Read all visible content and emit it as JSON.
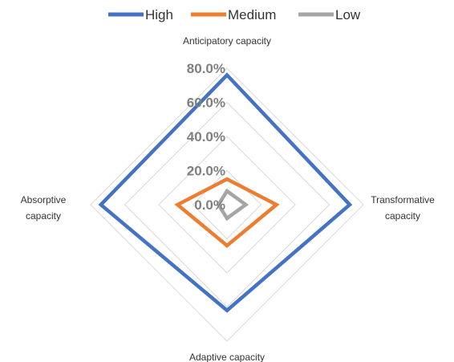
{
  "chart_data": {
    "type": "radar",
    "axes": [
      {
        "label_lines": [
          "Anticipatory capacity"
        ],
        "direction": "top"
      },
      {
        "label_lines": [
          "Transformative",
          "capacity"
        ],
        "direction": "right"
      },
      {
        "label_lines": [
          "Adaptive capacity"
        ],
        "direction": "bottom"
      },
      {
        "label_lines": [
          "Absorptive",
          "capacity"
        ],
        "direction": "left"
      }
    ],
    "r_ticks": [
      "0.0%",
      "20.0%",
      "40.0%",
      "60.0%",
      "80.0%"
    ],
    "r_tick_values": [
      0,
      20,
      40,
      60,
      80
    ],
    "r_max": 80,
    "grid": true,
    "legend_position": "top",
    "series": [
      {
        "name": "High",
        "color": "#4472C4",
        "values": [
          76,
          72,
          62,
          74
        ]
      },
      {
        "name": "Medium",
        "color": "#ED7D31",
        "values": [
          15,
          29,
          24,
          29
        ]
      },
      {
        "name": "Low",
        "color": "#A5A5A5",
        "values": [
          8,
          11,
          8,
          5
        ]
      }
    ]
  }
}
